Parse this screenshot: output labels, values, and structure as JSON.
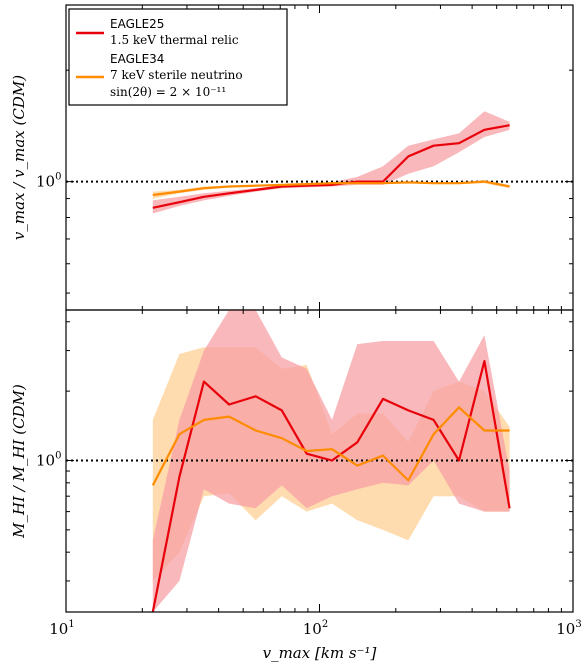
{
  "chart_data": [
    {
      "type": "line",
      "panel": "top",
      "ylabel": "v_max / v_max (CDM)",
      "xlabel": "",
      "x_scale": "log",
      "y_scale": "log",
      "xlim": [
        10,
        1000
      ],
      "ylim": [
        0.45,
        3.0
      ],
      "x_ticks": [
        {
          "value": 10,
          "base": "10",
          "exp": "1"
        },
        {
          "value": 100,
          "base": "10",
          "exp": "2"
        },
        {
          "value": 1000,
          "base": "10",
          "exp": "3"
        }
      ],
      "y_ticks": [
        {
          "value": 1.0,
          "base": "10",
          "exp": "0"
        }
      ],
      "reference_line": 1.0,
      "legend": {
        "placement": "top-left",
        "entries": [
          {
            "name": "EAGLE25",
            "detail": "1.5 keV thermal relic",
            "color": "#e8000b"
          },
          {
            "name": "EAGLE34",
            "detail": "7 keV sterile neutrino",
            "detail2": "sin(2θ) = 2 × 10⁻¹¹",
            "color": "#ff8c00"
          }
        ]
      },
      "series": [
        {
          "name": "EAGLE25",
          "color": "#e8000b",
          "band_color": "#f7a0a4",
          "x": [
            22,
            28,
            35,
            44,
            56,
            71,
            89,
            112,
            141,
            178,
            224,
            282,
            355,
            447,
            562
          ],
          "y": [
            0.85,
            0.88,
            0.91,
            0.93,
            0.95,
            0.97,
            0.975,
            0.98,
            1.0,
            1.0,
            1.17,
            1.25,
            1.27,
            1.38,
            1.42
          ],
          "y_low": [
            0.82,
            0.86,
            0.89,
            0.915,
            0.94,
            0.96,
            0.965,
            0.97,
            0.98,
            0.98,
            1.05,
            1.1,
            1.2,
            1.32,
            1.38
          ],
          "y_high": [
            0.89,
            0.91,
            0.93,
            0.945,
            0.96,
            0.98,
            0.99,
            0.995,
            1.03,
            1.1,
            1.25,
            1.3,
            1.35,
            1.55,
            1.45
          ]
        },
        {
          "name": "EAGLE34",
          "color": "#ff8c00",
          "band_color": "#ffd39b",
          "x": [
            22,
            28,
            35,
            44,
            56,
            71,
            89,
            112,
            141,
            178,
            224,
            282,
            355,
            447,
            562
          ],
          "y": [
            0.92,
            0.94,
            0.96,
            0.97,
            0.975,
            0.98,
            0.985,
            0.99,
            0.99,
            0.99,
            0.995,
            0.99,
            0.99,
            1.0,
            0.97
          ],
          "y_low": [
            0.9,
            0.93,
            0.95,
            0.965,
            0.97,
            0.975,
            0.98,
            0.985,
            0.985,
            0.985,
            0.99,
            0.985,
            0.985,
            0.99,
            0.96
          ],
          "y_high": [
            0.94,
            0.95,
            0.97,
            0.975,
            0.98,
            0.985,
            0.99,
            0.995,
            0.995,
            0.995,
            1.0,
            0.995,
            0.995,
            1.01,
            0.98
          ]
        }
      ]
    },
    {
      "type": "line",
      "panel": "bottom",
      "ylabel": "M_HI / M_HI (CDM)",
      "xlabel": "v_max [km s⁻¹]",
      "x_scale": "log",
      "y_scale": "log",
      "xlim": [
        10,
        1000
      ],
      "ylim": [
        0.22,
        4.5
      ],
      "x_ticks": [
        {
          "value": 10,
          "base": "10",
          "exp": "1"
        },
        {
          "value": 100,
          "base": "10",
          "exp": "2"
        },
        {
          "value": 1000,
          "base": "10",
          "exp": "3"
        }
      ],
      "y_ticks": [
        {
          "value": 1.0,
          "base": "10",
          "exp": "0"
        }
      ],
      "reference_line": 1.0,
      "series": [
        {
          "name": "EAGLE25",
          "color": "#e8000b",
          "band_color": "#f7a0a4",
          "x": [
            22,
            28,
            35,
            44,
            56,
            71,
            89,
            112,
            141,
            178,
            224,
            282,
            355,
            447,
            562
          ],
          "y": [
            0.22,
            0.85,
            2.2,
            1.75,
            1.9,
            1.65,
            1.07,
            1.0,
            1.2,
            1.85,
            1.65,
            1.5,
            1.0,
            2.7,
            0.62
          ],
          "y_low": [
            0.22,
            0.3,
            0.75,
            0.65,
            0.62,
            0.78,
            0.62,
            0.7,
            0.75,
            0.8,
            0.78,
            1.0,
            0.65,
            0.6,
            0.6
          ],
          "y_high": [
            0.45,
            1.5,
            3.0,
            4.5,
            4.5,
            2.8,
            2.5,
            1.5,
            3.2,
            3.3,
            3.3,
            3.3,
            2.2,
            3.5,
            0.9
          ]
        },
        {
          "name": "EAGLE34",
          "color": "#ff8c00",
          "band_color": "#ffd39b",
          "x": [
            22,
            28,
            35,
            44,
            56,
            71,
            89,
            112,
            141,
            178,
            224,
            282,
            355,
            447,
            562
          ],
          "y": [
            0.78,
            1.3,
            1.5,
            1.55,
            1.35,
            1.25,
            1.1,
            1.12,
            0.95,
            1.05,
            0.82,
            1.3,
            1.7,
            1.35,
            1.35
          ],
          "y_low": [
            0.3,
            0.4,
            0.7,
            0.72,
            0.55,
            0.7,
            0.6,
            0.65,
            0.55,
            0.5,
            0.45,
            0.7,
            0.7,
            0.6,
            0.6
          ],
          "y_high": [
            1.5,
            2.9,
            3.1,
            3.1,
            3.1,
            2.5,
            2.6,
            1.3,
            1.6,
            1.6,
            1.2,
            2.0,
            2.2,
            2.0,
            1.4
          ]
        }
      ]
    }
  ]
}
